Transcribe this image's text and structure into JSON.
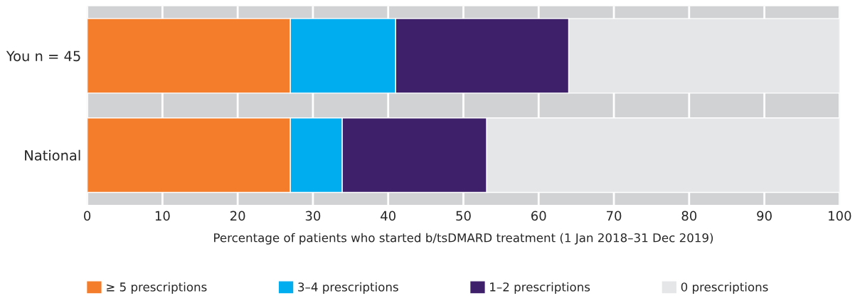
{
  "chart_data": {
    "type": "bar",
    "orientation": "horizontal",
    "stacked": true,
    "categories": [
      "You n = 45",
      "National"
    ],
    "series": [
      {
        "name": "≥ 5 prescriptions",
        "color": "#f47d2b",
        "values": [
          27,
          27
        ]
      },
      {
        "name": "3–4 prescriptions",
        "color": "#00adee",
        "values": [
          14,
          6.9
        ]
      },
      {
        "name": "1–2 prescriptions",
        "color": "#3e1f6a",
        "values": [
          23,
          19.2
        ]
      },
      {
        "name": "0 prescriptions",
        "color": "#e5e6e8",
        "values": [
          36,
          46.9
        ]
      }
    ],
    "xlabel": "Percentage of patients who started b/tsDMARD treatment (1 Jan 2018–31 Dec 2019)",
    "xlim": [
      0,
      100
    ],
    "xticks": [
      0,
      10,
      20,
      30,
      40,
      50,
      60,
      70,
      80,
      90,
      100
    ],
    "grid": "x",
    "legend": "bottom"
  }
}
